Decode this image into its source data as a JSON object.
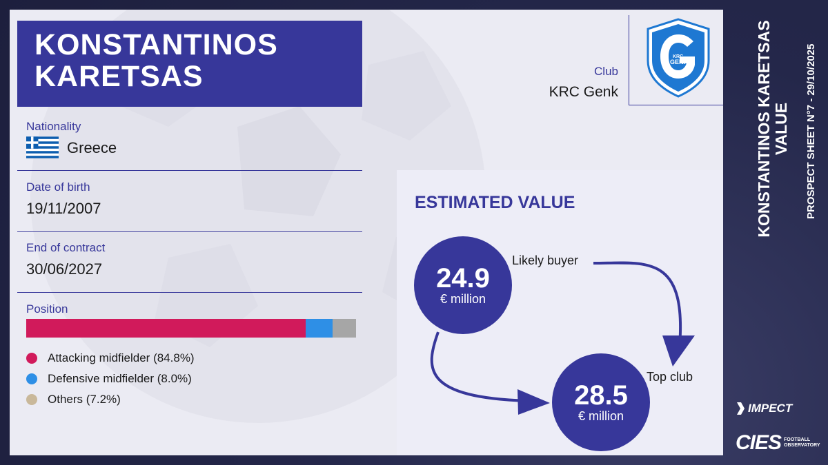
{
  "player": {
    "name_line1": "KONSTANTINOS",
    "name_line2": "KARETSAS"
  },
  "club": {
    "label": "Club",
    "name": "KRC Genk",
    "logo_text_top": "KRC",
    "logo_text_bottom": "GENK"
  },
  "nationality": {
    "label": "Nationality",
    "value": "Greece"
  },
  "date_of_birth": {
    "label": "Date of birth",
    "value": "19/11/2007"
  },
  "end_of_contract": {
    "label": "End of contract",
    "value": "30/06/2027"
  },
  "position": {
    "label": "Position",
    "segments": [
      {
        "label": "Attacking midfielder (84.8%)",
        "share": 84.8,
        "bar_color": "#d11a5b",
        "dot_color": "#d11a5b"
      },
      {
        "label": "Defensive midfielder (8.0%)",
        "share": 8.0,
        "bar_color": "#2e8fe6",
        "dot_color": "#2e8fe6"
      },
      {
        "label": "Others (7.2%)",
        "share": 7.2,
        "bar_color": "#a6a6a6",
        "dot_color": "#c9b89a"
      }
    ]
  },
  "estimated_value": {
    "title": "ESTIMATED VALUE",
    "likely_buyer": {
      "label": "Likely buyer",
      "value": "24.9",
      "unit": "€ million"
    },
    "top_club": {
      "label": "Top club",
      "value": "28.5",
      "unit": "€ million"
    }
  },
  "sidebar": {
    "title_line1": "KONSTANTINOS KARETSAS",
    "title_line2": "VALUE",
    "subtitle": "PROSPECT SHEET N°7 - 29/10/2025"
  },
  "sponsors": {
    "impect": "IMPECT",
    "cies": "CIES",
    "cies_sub1": "FOOTBALL",
    "cies_sub2": "OBSERVATORY"
  },
  "colors": {
    "accent": "#37379a",
    "background": "#272a4c",
    "panel": "#ebebf3"
  }
}
